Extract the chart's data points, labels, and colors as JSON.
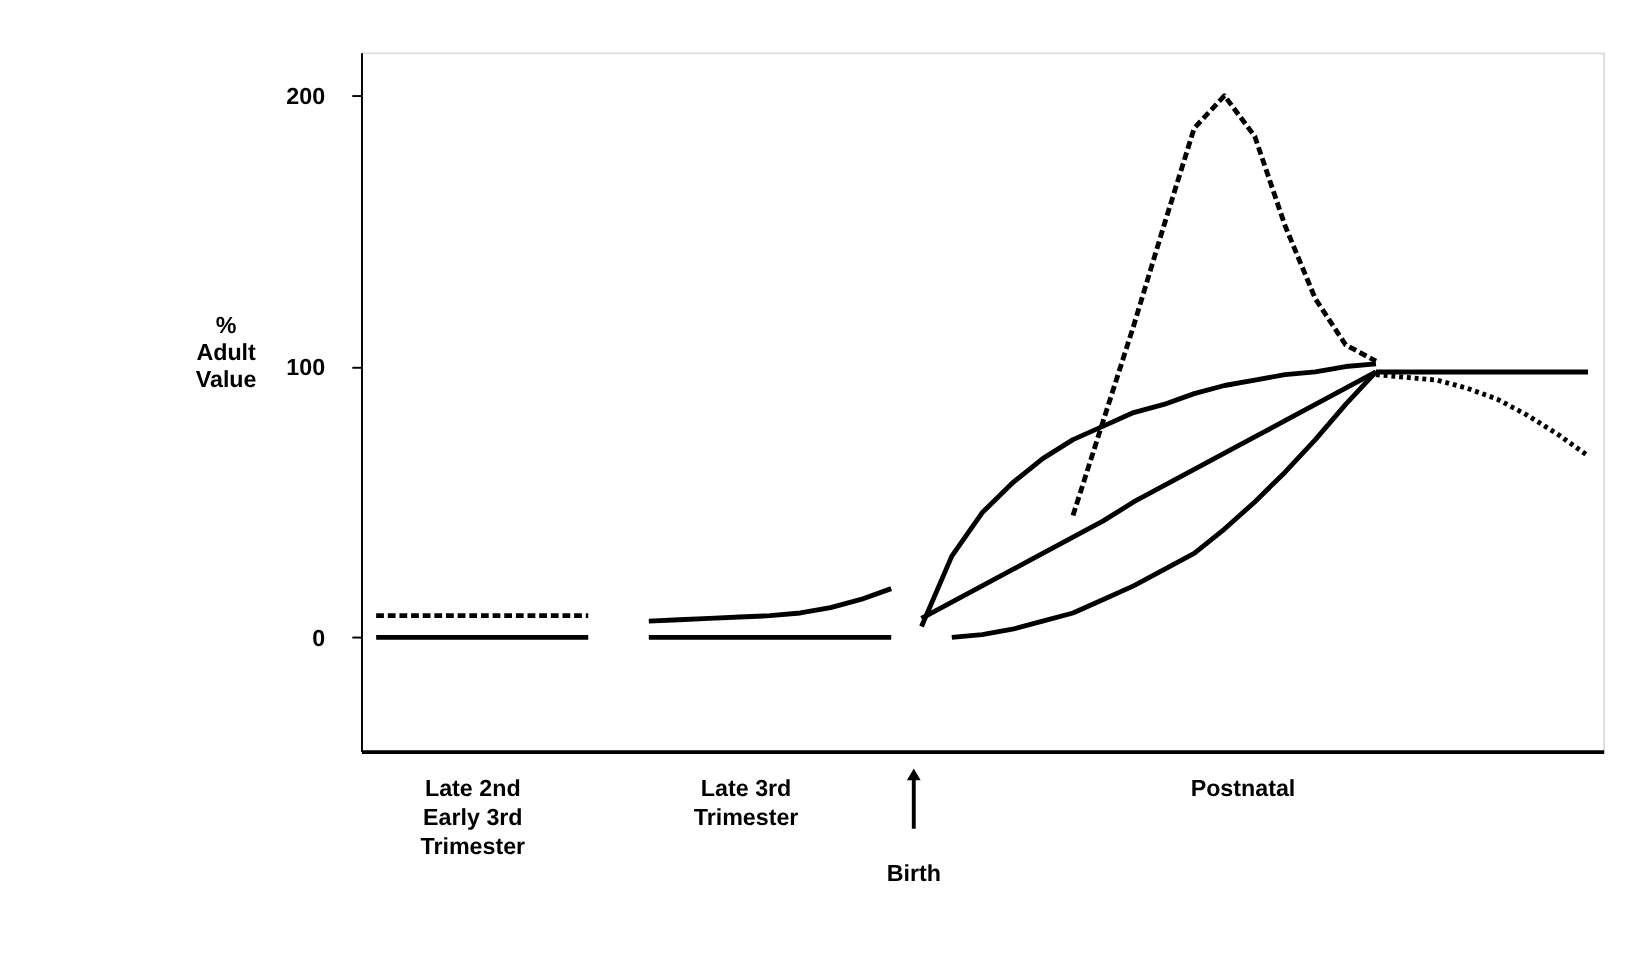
{
  "chart_data": {
    "type": "line",
    "ylabel": "%\nAdult\nValue",
    "ylim": [
      -42,
      216
    ],
    "yticks": [
      0,
      100,
      200
    ],
    "categories": [
      null,
      null,
      null,
      null,
      null,
      null,
      null,
      null,
      null,
      null,
      null,
      null,
      null,
      null,
      null,
      null,
      null,
      null,
      null,
      null,
      null,
      null,
      null,
      null,
      null,
      null,
      null,
      null,
      null,
      null,
      null,
      null,
      null,
      null,
      null,
      null,
      null,
      null,
      null,
      null,
      null
    ],
    "grid": false,
    "marker": "none",
    "series": [
      {
        "color": "#000000",
        "line_style": "solid",
        "values": [
          0,
          0,
          0,
          0,
          0,
          0,
          0,
          0,
          null,
          0,
          0,
          0,
          0,
          0,
          0,
          0,
          0,
          0,
          null,
          0,
          1,
          3,
          6,
          9,
          14,
          19,
          25,
          31,
          40,
          50,
          61,
          73,
          86,
          98,
          null,
          null,
          null,
          null,
          null,
          null,
          null
        ]
      },
      {
        "color": "#000000",
        "line_style": "solid",
        "values": [
          null,
          null,
          null,
          null,
          null,
          null,
          null,
          null,
          null,
          null,
          null,
          null,
          null,
          null,
          null,
          null,
          null,
          null,
          7,
          13,
          19,
          25,
          31,
          37,
          43,
          50,
          56,
          62,
          68,
          74,
          80,
          86,
          92,
          98,
          null,
          null,
          null,
          null,
          null,
          null,
          null
        ]
      },
      {
        "color": "#000000",
        "line_style": "solid",
        "values": [
          null,
          null,
          null,
          null,
          null,
          null,
          null,
          null,
          null,
          null,
          null,
          null,
          null,
          null,
          null,
          null,
          null,
          null,
          4,
          30,
          46,
          57,
          66,
          73,
          78,
          83,
          86,
          90,
          93,
          95,
          97,
          98,
          100,
          101,
          null,
          null,
          null,
          null,
          null,
          null,
          null
        ]
      },
      {
        "color": "#000000",
        "line_style": "solid",
        "values": [
          null,
          null,
          null,
          null,
          null,
          null,
          null,
          null,
          null,
          null,
          null,
          null,
          null,
          null,
          null,
          null,
          null,
          null,
          null,
          null,
          null,
          null,
          null,
          null,
          null,
          null,
          null,
          null,
          null,
          null,
          null,
          null,
          null,
          98,
          98,
          98,
          98,
          98,
          98,
          98,
          98
        ]
      },
      {
        "color": "#000000",
        "line_style": "dashed",
        "values": [
          8,
          8,
          8,
          8,
          8,
          8,
          8,
          8,
          null,
          null,
          null,
          null,
          null,
          null,
          null,
          null,
          null,
          null,
          null,
          null,
          null,
          null,
          null,
          null,
          null,
          null,
          null,
          null,
          null,
          null,
          null,
          null,
          null,
          null,
          null,
          null,
          null,
          null,
          null,
          null,
          null
        ]
      },
      {
        "color": "#000000",
        "line_style": "solid",
        "values": [
          null,
          null,
          null,
          null,
          null,
          null,
          null,
          null,
          null,
          6,
          6.5,
          7,
          7.5,
          8,
          9,
          11,
          14,
          18,
          null,
          null,
          null,
          null,
          null,
          null,
          null,
          null,
          null,
          null,
          null,
          null,
          null,
          null,
          null,
          null,
          null,
          null,
          null,
          null,
          null,
          null,
          null
        ]
      },
      {
        "color": "#000000",
        "line_style": "dashed",
        "values": [
          null,
          null,
          null,
          null,
          null,
          null,
          null,
          null,
          null,
          null,
          null,
          null,
          null,
          null,
          null,
          null,
          null,
          null,
          null,
          null,
          null,
          null,
          null,
          45,
          80,
          115,
          152,
          188,
          200,
          185,
          152,
          125,
          108,
          102,
          null,
          null,
          null,
          null,
          null,
          null,
          null
        ]
      },
      {
        "color": "#000000",
        "line_style": "dotted",
        "values": [
          null,
          null,
          null,
          null,
          null,
          null,
          null,
          null,
          null,
          null,
          null,
          null,
          null,
          null,
          null,
          null,
          null,
          null,
          null,
          null,
          null,
          null,
          null,
          null,
          null,
          null,
          null,
          null,
          null,
          null,
          null,
          null,
          null,
          97,
          96,
          95,
          92,
          88,
          82,
          75,
          67
        ]
      }
    ],
    "annotations": [
      "Late 2nd\nEarly 3rd\nTrimester",
      "Late 3rd\nTrimester",
      "Birth",
      "Postnatal"
    ]
  }
}
